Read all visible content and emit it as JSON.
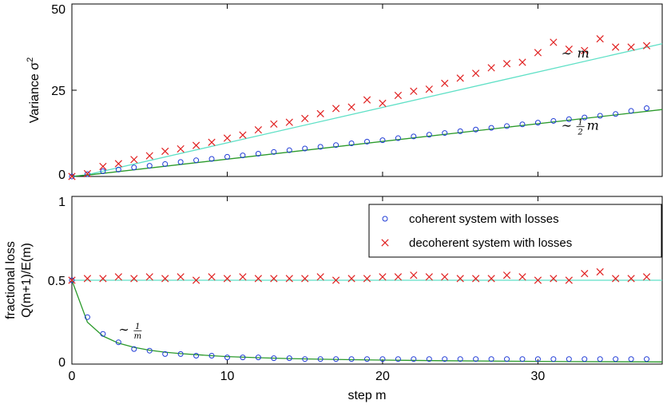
{
  "chart_data": [
    {
      "type": "scatter",
      "ylabel": "Variance σ",
      "ylabel_sup": "2",
      "xlim": [
        0,
        38
      ],
      "ylim": [
        0,
        50
      ],
      "xticks": [
        0,
        10,
        20,
        30
      ],
      "yticks": [
        0,
        25,
        50
      ],
      "yticklabels": [
        "0",
        "25",
        "50"
      ],
      "annotations": [
        {
          "prefix": "∼",
          "text": "m",
          "x": 31.5,
          "y": 34.5
        },
        {
          "prefix": "∼",
          "frac_num": "1",
          "frac_den": "2",
          "text": "m",
          "x": 31.5,
          "y": 13.5
        }
      ],
      "series": [
        {
          "name": "coherent system with losses",
          "marker": "circle",
          "color": "#1f3bd6",
          "x": [
            0,
            1,
            2,
            3,
            4,
            5,
            6,
            7,
            8,
            9,
            10,
            11,
            12,
            13,
            14,
            15,
            16,
            17,
            18,
            19,
            20,
            21,
            22,
            23,
            24,
            25,
            26,
            27,
            28,
            29,
            30,
            31,
            32,
            33,
            34,
            35,
            36,
            37
          ],
          "y": [
            0,
            0.7,
            1.5,
            2.0,
            2.6,
            3.1,
            3.6,
            4.2,
            4.7,
            5.1,
            5.7,
            6.1,
            6.6,
            7.1,
            7.6,
            8.1,
            8.6,
            9.1,
            9.6,
            10.1,
            10.5,
            11.1,
            11.6,
            12.1,
            12.6,
            13.1,
            13.6,
            14.1,
            14.6,
            15.1,
            15.6,
            16.1,
            16.6,
            17.1,
            17.6,
            18.1,
            19.0,
            19.8
          ]
        },
        {
          "name": "decoherent system with losses",
          "marker": "x",
          "color": "#e02020",
          "x": [
            0,
            1,
            2,
            3,
            4,
            5,
            6,
            7,
            8,
            9,
            10,
            11,
            12,
            13,
            14,
            15,
            16,
            17,
            18,
            19,
            20,
            21,
            22,
            23,
            24,
            25,
            26,
            27,
            28,
            29,
            30,
            31,
            32,
            33,
            34,
            35,
            36,
            37
          ],
          "y": [
            0,
            0.8,
            2.9,
            3.7,
            4.9,
            6.0,
            7.3,
            8.0,
            9.0,
            9.9,
            11.1,
            12.0,
            13.5,
            15.2,
            15.7,
            16.8,
            18.2,
            19.7,
            20.1,
            22.2,
            21.2,
            23.5,
            24.7,
            25.3,
            27.0,
            28.5,
            29.9,
            31.5,
            32.7,
            33.1,
            35.9,
            38.9,
            36.9,
            36.5,
            39.9,
            37.5,
            37.5,
            37.9
          ]
        },
        {
          "name": "theory m",
          "marker": "line",
          "color": "#5fe0c6",
          "x": [
            0,
            1,
            38
          ],
          "y": [
            0,
            0.5,
            38.5
          ]
        },
        {
          "name": "theory m/2",
          "marker": "line",
          "color": "#2a9a2a",
          "x": [
            0,
            1,
            38
          ],
          "y": [
            0,
            0.4,
            19.4
          ]
        }
      ]
    },
    {
      "type": "scatter",
      "ylabel_lines": [
        "fractional loss",
        "Q(m+1)/E(m)"
      ],
      "xlabel": "step m",
      "xlim": [
        0,
        38
      ],
      "ylim": [
        0,
        1
      ],
      "xticks": [
        0,
        10,
        20,
        30
      ],
      "xticklabels": [
        "0",
        "10",
        "20",
        "30"
      ],
      "yticks": [
        0,
        0.5,
        1
      ],
      "yticklabels": [
        "0",
        "0.5",
        "1"
      ],
      "legend_position": "top-right",
      "annotations": [
        {
          "prefix": "∼",
          "frac_num": "1",
          "frac_den": "m",
          "x": 3.0,
          "y": 0.18
        }
      ],
      "series": [
        {
          "name": "coherent system with losses",
          "marker": "circle",
          "color": "#1f3bd6",
          "x": [
            0,
            1,
            2,
            3,
            4,
            5,
            6,
            7,
            8,
            9,
            10,
            11,
            12,
            13,
            14,
            15,
            16,
            17,
            18,
            19,
            20,
            21,
            22,
            23,
            24,
            25,
            26,
            27,
            28,
            29,
            30,
            31,
            32,
            33,
            34,
            35,
            36,
            37
          ],
          "y": [
            0.5,
            0.28,
            0.18,
            0.13,
            0.09,
            0.08,
            0.06,
            0.06,
            0.05,
            0.05,
            0.04,
            0.04,
            0.04,
            0.035,
            0.035,
            0.03,
            0.03,
            0.03,
            0.03,
            0.03,
            0.03,
            0.03,
            0.03,
            0.03,
            0.03,
            0.03,
            0.03,
            0.03,
            0.03,
            0.03,
            0.03,
            0.03,
            0.03,
            0.03,
            0.03,
            0.03,
            0.03,
            0.03
          ]
        },
        {
          "name": "decoherent system with losses",
          "marker": "x",
          "color": "#e02020",
          "x": [
            0,
            1,
            2,
            3,
            4,
            5,
            6,
            7,
            8,
            9,
            10,
            11,
            12,
            13,
            14,
            15,
            16,
            17,
            18,
            19,
            20,
            21,
            22,
            23,
            24,
            25,
            26,
            27,
            28,
            29,
            30,
            31,
            32,
            33,
            34,
            35,
            36,
            37
          ],
          "y": [
            0.5,
            0.51,
            0.51,
            0.52,
            0.51,
            0.52,
            0.51,
            0.52,
            0.5,
            0.52,
            0.51,
            0.52,
            0.51,
            0.51,
            0.51,
            0.51,
            0.52,
            0.5,
            0.51,
            0.51,
            0.52,
            0.52,
            0.53,
            0.52,
            0.52,
            0.51,
            0.51,
            0.51,
            0.53,
            0.52,
            0.5,
            0.51,
            0.5,
            0.54,
            0.55,
            0.51,
            0.51,
            0.52
          ]
        },
        {
          "name": "theory 0.5",
          "marker": "line",
          "color": "#5fe0c6",
          "x": [
            0,
            38
          ],
          "y": [
            0.5,
            0.5
          ]
        },
        {
          "name": "theory 1/m",
          "marker": "line",
          "color": "#2a9a2a",
          "x": [
            0,
            1,
            2,
            3,
            4,
            5,
            6,
            7,
            8,
            9,
            10,
            12,
            14,
            16,
            18,
            20,
            24,
            28,
            32,
            38
          ],
          "y": [
            0.5,
            0.25,
            0.167,
            0.125,
            0.1,
            0.083,
            0.071,
            0.0625,
            0.056,
            0.05,
            0.045,
            0.038,
            0.033,
            0.029,
            0.026,
            0.024,
            0.02,
            0.017,
            0.015,
            0.013
          ]
        }
      ]
    }
  ]
}
